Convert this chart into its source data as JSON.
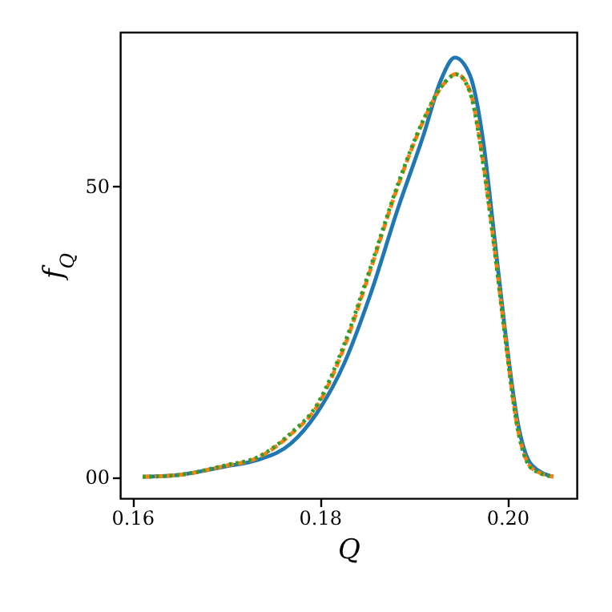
{
  "chart_data": {
    "type": "line",
    "xlabel": "Q",
    "ylabel": "f$_{Q}$",
    "xlim": [
      0.1587,
      0.2074
    ],
    "ylim": [
      -3.7,
      76.5
    ],
    "xticks": [
      {
        "value": 0.16,
        "label": "0.16"
      },
      {
        "value": 0.18,
        "label": "0.18"
      },
      {
        "value": 0.2,
        "label": "0.20"
      }
    ],
    "yticks": [
      {
        "value": 0,
        "label": "00"
      },
      50
    ],
    "grid": false,
    "series": [
      {
        "color": "#1f77b4",
        "line_style": "solid",
        "x": [
          0.1611,
          0.1643,
          0.17,
          0.1734,
          0.1769,
          0.1797,
          0.1826,
          0.1854,
          0.1883,
          0.1911,
          0.1929,
          0.1944,
          0.196,
          0.1974,
          0.1986,
          0.1997,
          0.2011,
          0.2026,
          0.2049
        ],
        "values": [
          0,
          0.2,
          1.8,
          2.9,
          5.7,
          11,
          19.5,
          31.4,
          46,
          59,
          68.2,
          72.1,
          69.1,
          58,
          41.5,
          25.9,
          9.4,
          2,
          0
        ]
      },
      {
        "color": "#ff7f0e",
        "line_style": "dashed",
        "x": [
          0.1611,
          0.1643,
          0.17,
          0.1734,
          0.1769,
          0.1797,
          0.1826,
          0.1854,
          0.1883,
          0.1911,
          0.1929,
          0.1946,
          0.196,
          0.1974,
          0.1986,
          0.1997,
          0.2011,
          0.2026,
          0.2049
        ],
        "values": [
          0,
          0.2,
          1.9,
          3.3,
          7.3,
          12.1,
          22.3,
          35.6,
          49.9,
          61.4,
          66.9,
          69.3,
          66.4,
          54.4,
          39.7,
          25,
          8.4,
          1.5,
          0
        ]
      },
      {
        "color": "#2ca02c",
        "line_style": "dotted",
        "x": [
          0.1611,
          0.1643,
          0.17,
          0.1734,
          0.1769,
          0.1797,
          0.1826,
          0.1854,
          0.1883,
          0.1911,
          0.1929,
          0.1946,
          0.196,
          0.1974,
          0.1986,
          0.1997,
          0.2011,
          0.2026,
          0.2049
        ],
        "values": [
          0,
          0.2,
          2,
          3.4,
          7.5,
          12.4,
          22.8,
          36,
          50.2,
          61.6,
          67,
          69.2,
          66.2,
          54,
          39.4,
          24.8,
          8.2,
          1.4,
          0
        ]
      }
    ]
  }
}
